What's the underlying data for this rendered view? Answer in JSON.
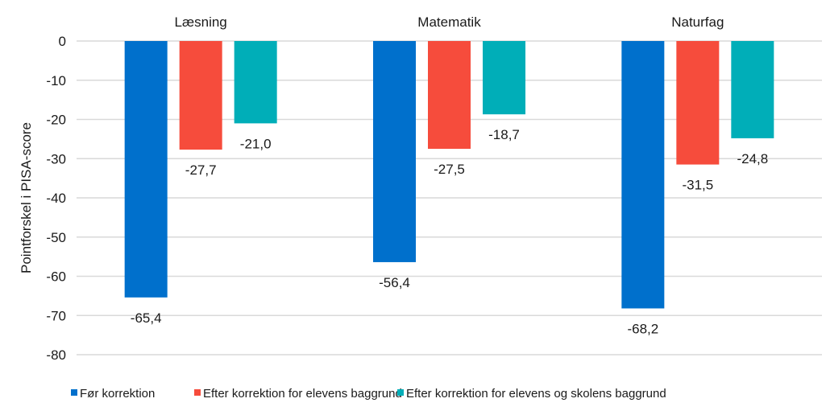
{
  "chart_data": {
    "type": "bar",
    "categories": [
      "Læsning",
      "Matematik",
      "Naturfag"
    ],
    "series": [
      {
        "name": "Før korrektion",
        "color": "#0070CC",
        "values": [
          -65.4,
          -56.4,
          -68.2
        ],
        "labels": [
          "-65,4",
          "-56,4",
          "-68,2"
        ]
      },
      {
        "name": "Efter korrektion for elevens baggrund",
        "color": "#F64C3C",
        "values": [
          -27.7,
          -27.5,
          -31.5
        ],
        "labels": [
          "-27,7",
          "-27,5",
          "-31,5"
        ]
      },
      {
        "name": "Efter korrektion for elevens og skolens baggrund",
        "color": "#00AEB8",
        "values": [
          -21.0,
          -18.7,
          -24.8
        ],
        "labels": [
          "-21,0",
          "-18,7",
          "-24,8"
        ]
      }
    ],
    "ylabel": "Pointforskel i PISA-score",
    "ylim": [
      -80,
      0
    ],
    "yticks": [
      "0",
      "-10",
      "-20",
      "-30",
      "-40",
      "-50",
      "-60",
      "-70",
      "-80"
    ],
    "category_position": "top",
    "grid": true,
    "legend": "bottom"
  }
}
